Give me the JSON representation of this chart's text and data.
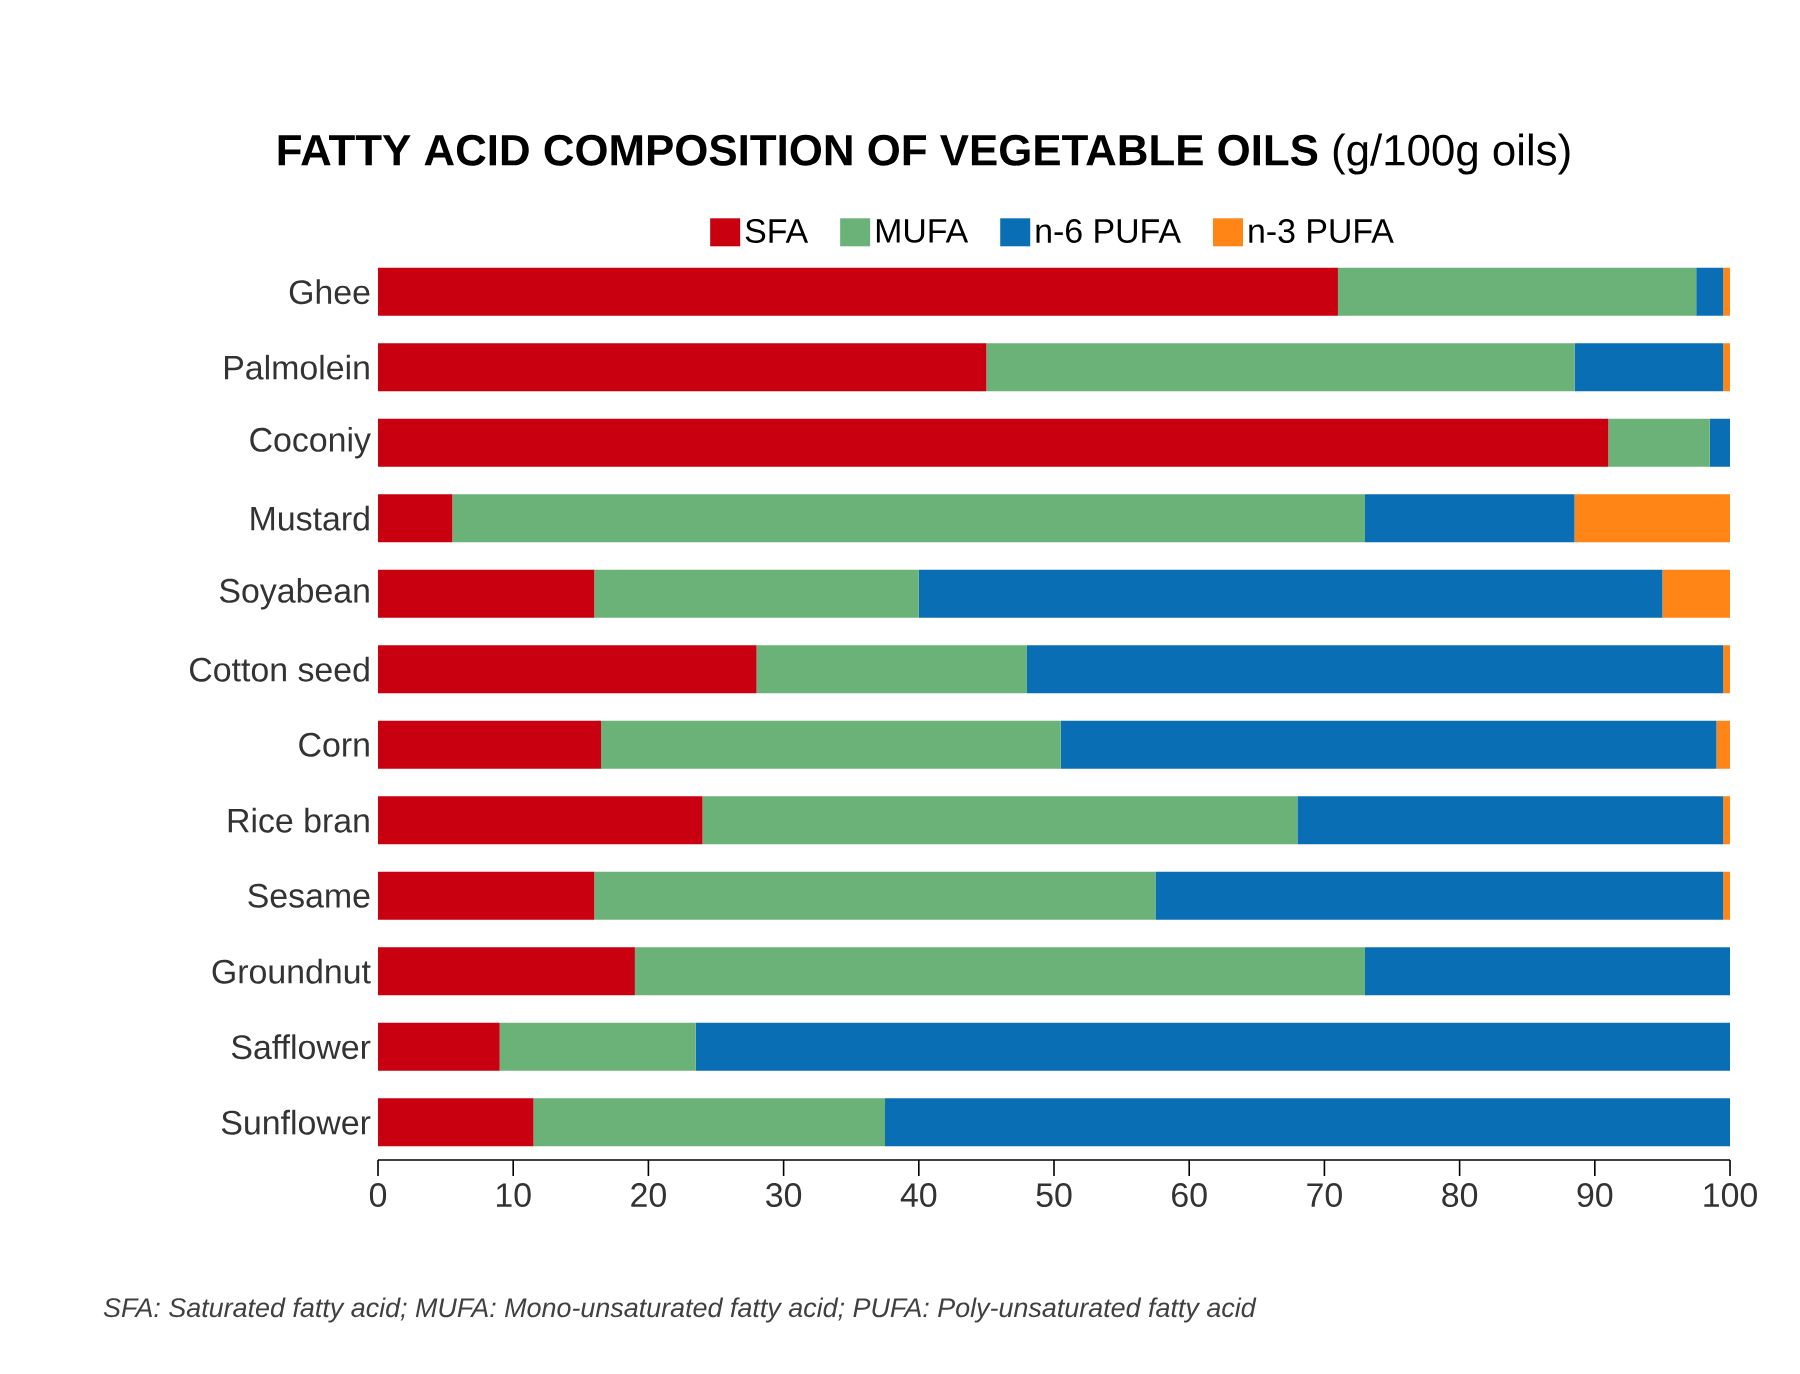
{
  "chart_data": {
    "type": "bar",
    "orientation": "horizontal",
    "stacked": true,
    "title": "**FATTY ACID COMPOSITION OF VEGETABLE OILS** (g/100g oils)",
    "categories": [
      "Ghee",
      "Palmolein",
      "Coconiy",
      "Mustard",
      "Soyabean",
      "Cotton seed",
      "Corn",
      "Rice bran",
      "Sesame",
      "Groundnut",
      "Safflower",
      "Sunflower"
    ],
    "series": [
      {
        "name": "SFA",
        "color": "#c8000f",
        "values": [
          71,
          45,
          91,
          5.5,
          16,
          28,
          16.5,
          24,
          16,
          19,
          9,
          11.5
        ]
      },
      {
        "name": "MUFA",
        "color": "#6ab277",
        "values": [
          26.5,
          43.5,
          7.5,
          67.5,
          24,
          20,
          34,
          44,
          41.5,
          54,
          14.5,
          26
        ]
      },
      {
        "name": "n-6 PUFA",
        "color": "#0a6eb4",
        "values": [
          2,
          11,
          1.5,
          15.5,
          55,
          51.5,
          48.5,
          31.5,
          42,
          27,
          76.5,
          62.5
        ]
      },
      {
        "name": "n-3 PUFA",
        "color": "#ff8517",
        "values": [
          0.5,
          0.5,
          0,
          11.5,
          5,
          0.5,
          1,
          0.5,
          0.5,
          0,
          0,
          0
        ]
      }
    ],
    "xlim": [
      0,
      100
    ],
    "xticks": [
      0,
      10,
      20,
      30,
      40,
      50,
      60,
      70,
      80,
      90,
      100
    ],
    "grid": false,
    "legend": "top",
    "annotations": [
      "*SFA: Saturated fatty acid; MUFA: Mono-unsaturated fatty acid; PUFA: Poly-unsaturated fatty acid*"
    ]
  }
}
